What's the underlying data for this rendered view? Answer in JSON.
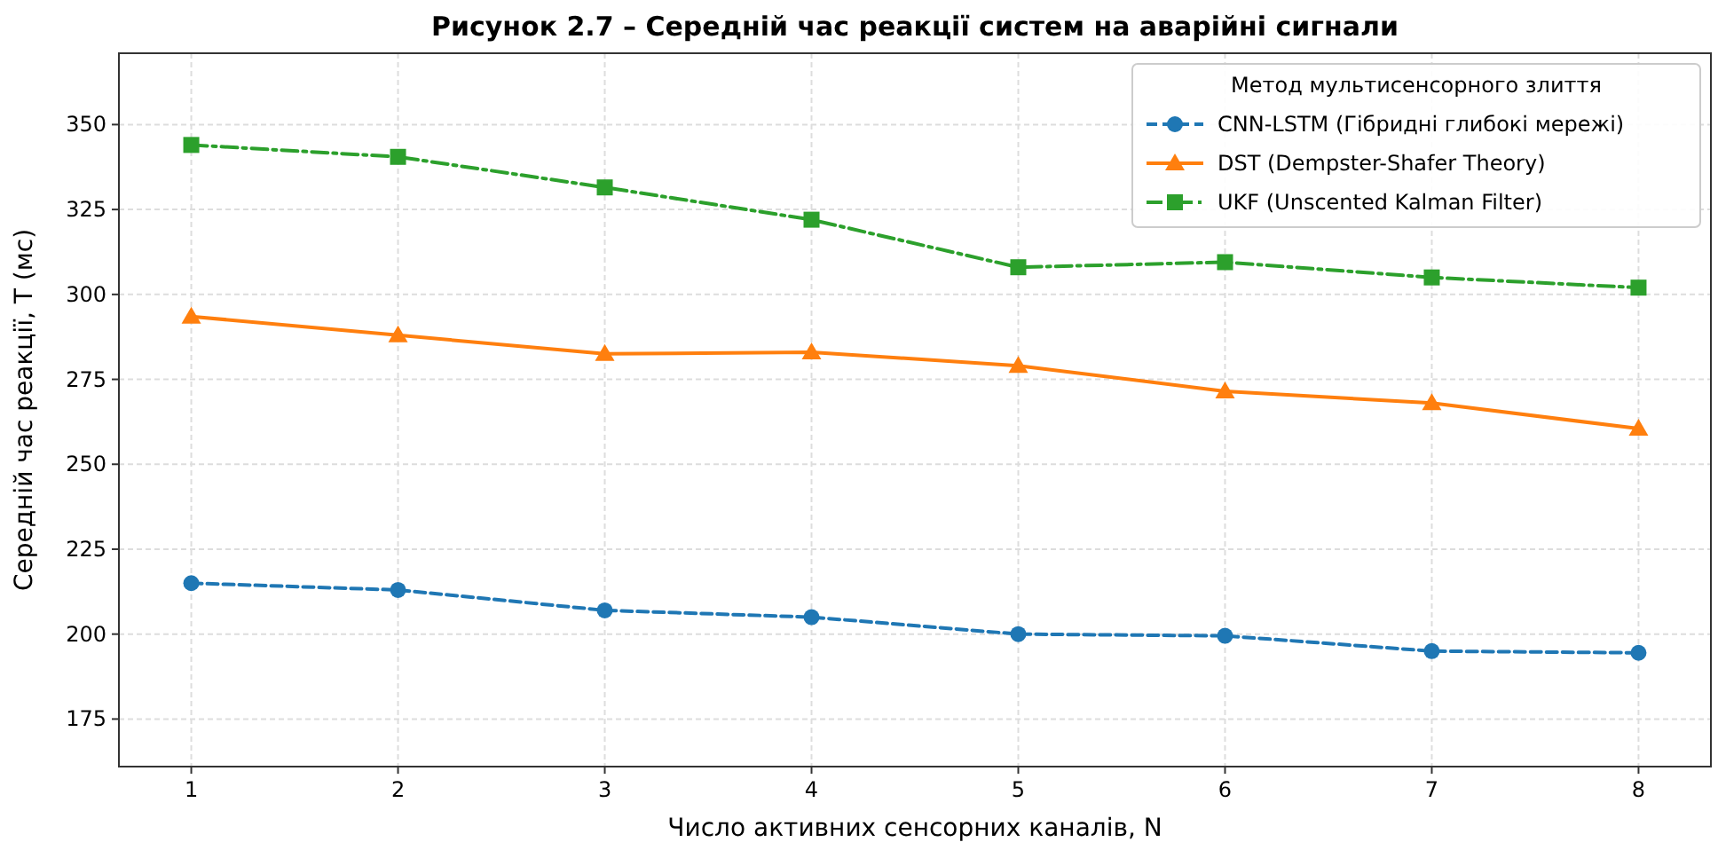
{
  "chart_data": {
    "type": "line",
    "title": "Рисунок 2.7 – Середній час реакції систем на аварійні сигнали",
    "xlabel": "Число активних сенсорних каналів, N",
    "ylabel": "Середній час реакції, T (мс)",
    "legend_title": "Метод мультисенсорного злиття",
    "x": [
      1,
      2,
      3,
      4,
      5,
      6,
      7,
      8
    ],
    "series": [
      {
        "name": "CNN-LSTM (Гібридні глибокі мережі)",
        "color": "#1f77b4",
        "marker": "circle",
        "line_style": "dashed",
        "values": [
          215,
          213,
          207,
          205,
          200,
          199.5,
          195,
          194.5
        ]
      },
      {
        "name": "DST (Dempster-Shafer Theory)",
        "color": "#ff7f0e",
        "marker": "triangle",
        "line_style": "solid",
        "values": [
          293.5,
          288,
          282.5,
          283,
          279,
          271.5,
          268,
          260.5
        ]
      },
      {
        "name": "UKF (Unscented Kalman Filter)",
        "color": "#2ca02c",
        "marker": "square",
        "line_style": "dashdot",
        "values": [
          344,
          340.5,
          331.5,
          322,
          308,
          309.5,
          305,
          302
        ]
      }
    ],
    "xlim": [
      0.65,
      8.35
    ],
    "ylim": [
      161,
      371
    ],
    "xticks": [
      1,
      2,
      3,
      4,
      5,
      6,
      7,
      8
    ],
    "yticks": [
      175,
      200,
      225,
      250,
      275,
      300,
      325,
      350
    ],
    "grid": true,
    "legend": "top right"
  }
}
